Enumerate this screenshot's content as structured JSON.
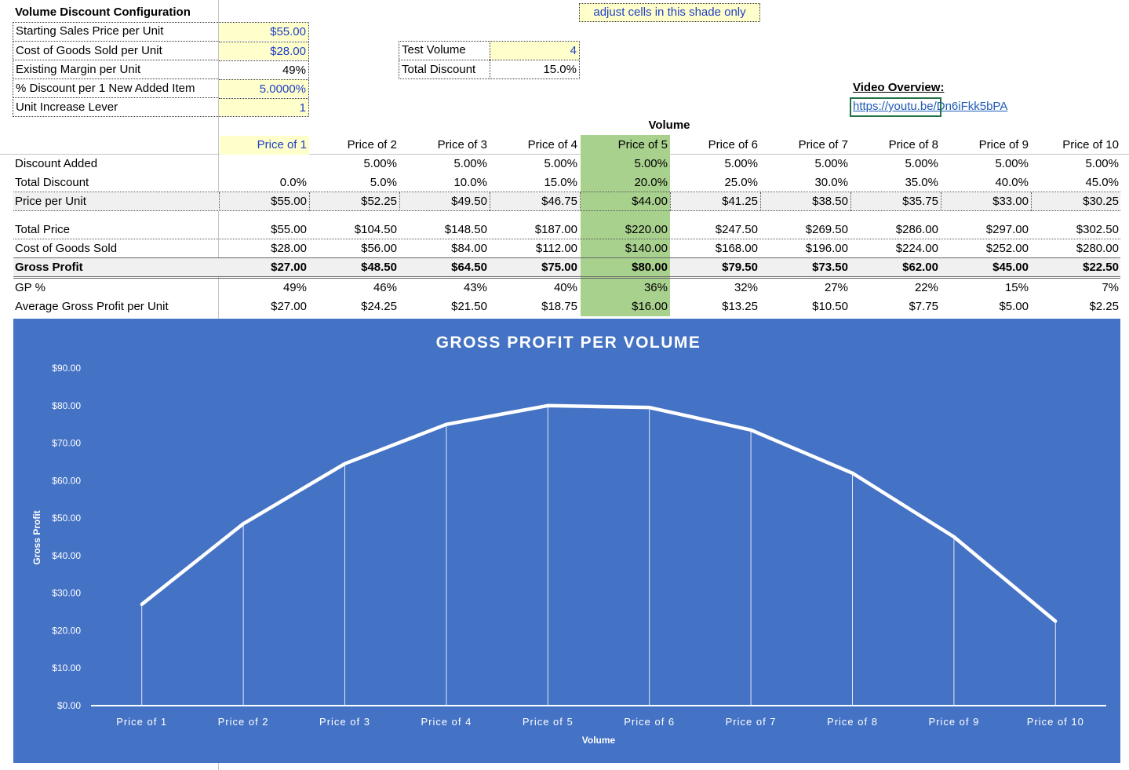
{
  "config": {
    "title": "Volume Discount Configuration",
    "rows": [
      {
        "label": "Starting Sales Price per Unit",
        "value": "$55.00",
        "input": true
      },
      {
        "label": "Cost of Goods Sold per Unit",
        "value": "$28.00",
        "input": true
      },
      {
        "label": "Existing Margin per Unit",
        "value": "49%",
        "input": false
      },
      {
        "label": "% Discount per 1 New Added Item",
        "value": "5.0000%",
        "input": true
      },
      {
        "label": "Unit Increase Lever",
        "value": "1",
        "input": true
      }
    ]
  },
  "note": "adjust cells in this shade only",
  "test": {
    "volume_label": "Test Volume",
    "volume_value": "4",
    "discount_label": "Total Discount",
    "discount_value": "15.0%"
  },
  "video": {
    "label": "Video Overview:",
    "link": "https://youtu.be/Dn6iFkk5bPA"
  },
  "table": {
    "group_header": "Volume",
    "highlight_column": 4,
    "columns": [
      "Price of 1",
      "Price of 2",
      "Price of 3",
      "Price of 4",
      "Price of 5",
      "Price of 6",
      "Price of 7",
      "Price of 8",
      "Price of 9",
      "Price of 10"
    ],
    "rows": [
      {
        "label": "Discount Added",
        "values": [
          "",
          "5.00%",
          "5.00%",
          "5.00%",
          "5.00%",
          "5.00%",
          "5.00%",
          "5.00%",
          "5.00%",
          "5.00%"
        ]
      },
      {
        "label": "Total Discount",
        "values": [
          "0.0%",
          "5.0%",
          "10.0%",
          "15.0%",
          "20.0%",
          "25.0%",
          "30.0%",
          "35.0%",
          "40.0%",
          "45.0%"
        ]
      },
      {
        "label": "Price per Unit",
        "values": [
          "$55.00",
          "$52.25",
          "$49.50",
          "$46.75",
          "$44.00",
          "$41.25",
          "$38.50",
          "$35.75",
          "$33.00",
          "$30.25"
        ]
      },
      {
        "label": "Total Price",
        "values": [
          "$55.00",
          "$104.50",
          "$148.50",
          "$187.00",
          "$220.00",
          "$247.50",
          "$269.50",
          "$286.00",
          "$297.00",
          "$302.50"
        ]
      },
      {
        "label": "Cost of Goods Sold",
        "values": [
          "$28.00",
          "$56.00",
          "$84.00",
          "$112.00",
          "$140.00",
          "$168.00",
          "$196.00",
          "$224.00",
          "$252.00",
          "$280.00"
        ]
      },
      {
        "label": "Gross Profit",
        "values": [
          "$27.00",
          "$48.50",
          "$64.50",
          "$75.00",
          "$80.00",
          "$79.50",
          "$73.50",
          "$62.00",
          "$45.00",
          "$22.50"
        ]
      },
      {
        "label": "GP %",
        "values": [
          "49%",
          "46%",
          "43%",
          "40%",
          "36%",
          "32%",
          "27%",
          "22%",
          "15%",
          "7%"
        ]
      },
      {
        "label": "Average Gross Profit per Unit",
        "values": [
          "$27.00",
          "$24.25",
          "$21.50",
          "$18.75",
          "$16.00",
          "$13.25",
          "$10.50",
          "$7.75",
          "$5.00",
          "$2.25"
        ]
      }
    ]
  },
  "chart_data": {
    "type": "line",
    "title": "GROSS PROFIT PER VOLUME",
    "xlabel": "Volume",
    "ylabel": "Gross Profit",
    "categories": [
      "Price of 1",
      "Price of 2",
      "Price of 3",
      "Price of 4",
      "Price of 5",
      "Price of 6",
      "Price of 7",
      "Price of 8",
      "Price of 9",
      "Price of 10"
    ],
    "series": [
      {
        "values": [
          27,
          48.5,
          64.5,
          75,
          80,
          79.5,
          73.5,
          62,
          45,
          22.5
        ]
      }
    ],
    "ylim": [
      0,
      90
    ],
    "yticks": [
      "$0.00",
      "$10.00",
      "$20.00",
      "$30.00",
      "$40.00",
      "$50.00",
      "$60.00",
      "$70.00",
      "$80.00",
      "$90.00"
    ],
    "drop_lines": true,
    "grid": false,
    "colors": {
      "background": "#4472c4",
      "line": "#ffffff",
      "drop_line": "#ffffff"
    }
  }
}
